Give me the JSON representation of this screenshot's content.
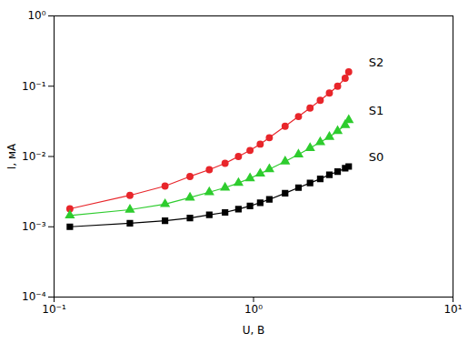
{
  "chart_data": {
    "type": "scatter",
    "x_label": "U, В",
    "y_label": "I, мА",
    "log": true,
    "grid": false,
    "line_style": "solid",
    "xlim": [
      0.1,
      10
    ],
    "ylim": [
      0.0001,
      1
    ],
    "xticks": [
      {
        "value": 0.1,
        "label": "10⁻¹"
      },
      {
        "value": 1,
        "label": "10⁰"
      },
      {
        "value": 10,
        "label": "10¹"
      }
    ],
    "yticks": [
      {
        "value": 0.0001,
        "label": "10⁻⁴"
      },
      {
        "value": 0.001,
        "label": "10⁻³"
      },
      {
        "value": 0.01,
        "label": "10⁻²"
      },
      {
        "value": 0.1,
        "label": "10⁻¹"
      },
      {
        "value": 1,
        "label": "10⁰"
      }
    ],
    "x": [
      0.12,
      0.24,
      0.36,
      0.48,
      0.6,
      0.72,
      0.84,
      0.96,
      1.08,
      1.2,
      1.44,
      1.68,
      1.92,
      2.16,
      2.4,
      2.64,
      2.88,
      3.0
    ],
    "series": [
      {
        "name": "S2",
        "color": "#e8262b",
        "marker": "circle",
        "values": [
          0.0018,
          0.0028,
          0.0038,
          0.0052,
          0.0065,
          0.008,
          0.01,
          0.0122,
          0.015,
          0.0185,
          0.027,
          0.037,
          0.049,
          0.063,
          0.08,
          0.1,
          0.13,
          0.16
        ]
      },
      {
        "name": "S1",
        "color": "#2ecc2e",
        "marker": "triangle",
        "values": [
          0.00145,
          0.00175,
          0.0021,
          0.0026,
          0.0031,
          0.0036,
          0.0042,
          0.0049,
          0.0057,
          0.0066,
          0.0085,
          0.0107,
          0.0132,
          0.016,
          0.019,
          0.023,
          0.028,
          0.033
        ]
      },
      {
        "name": "S0",
        "color": "#000000",
        "marker": "square",
        "values": [
          0.001,
          0.00112,
          0.00122,
          0.00133,
          0.00148,
          0.0016,
          0.00178,
          0.00198,
          0.0022,
          0.00245,
          0.003,
          0.0036,
          0.0042,
          0.0048,
          0.0055,
          0.0061,
          0.0068,
          0.0072
        ]
      }
    ]
  }
}
